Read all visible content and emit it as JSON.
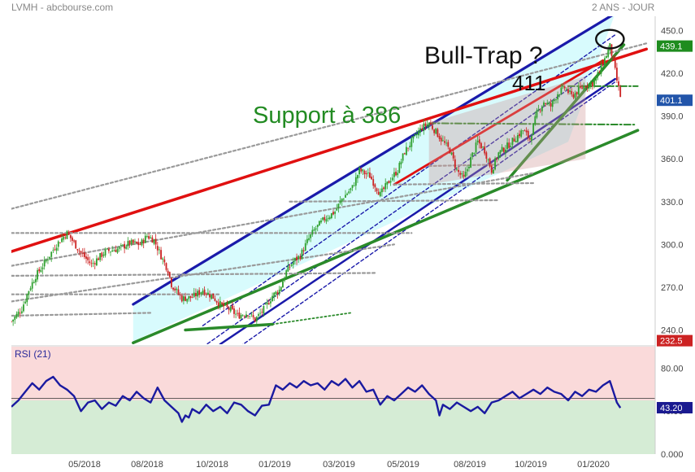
{
  "header": {
    "source": "LVMH - abcbourse.com",
    "period": "2 ANS - JOUR"
  },
  "colors": {
    "up": "#2ea02e",
    "down": "#cc2222",
    "blue": "#1a1aaa",
    "red": "#e01010",
    "green": "#2a8a2a",
    "dotted": "#9a9a9a",
    "channel_fill": "#d8fbfd",
    "rsi_line": "#1a1aa0",
    "rsi_high": "#fadada",
    "rsi_low": "#d5ecd5"
  },
  "chart_data": [
    {
      "type": "candlestick",
      "ylim": [
        230,
        460
      ],
      "y_ticks": [
        "450.0",
        "420.0",
        "390.0",
        "360.0",
        "330.0",
        "300.0",
        "270.0",
        "240.0"
      ],
      "y_tick_values": [
        450,
        420,
        390,
        360,
        330,
        300,
        270,
        240
      ],
      "x_ticks": [
        "05/2018",
        "08/2018",
        "10/2018",
        "01/2019",
        "03/2019",
        "05/2019",
        "08/2019",
        "10/2019",
        "01/2020"
      ],
      "price_labels": [
        {
          "text": "439.1",
          "value": 439.1,
          "color": "#1e8c1e"
        },
        {
          "text": "401.1",
          "value": 401.1,
          "color": "#2255aa"
        },
        {
          "text": "232.5",
          "value": 232.5,
          "color": "#cc2222"
        }
      ],
      "annotations": {
        "bull_trap": "Bull-Trap ?",
        "level_411": "411",
        "support": "Support à 386"
      },
      "close_path": [
        [
          0,
          246
        ],
        [
          6,
          255
        ],
        [
          10,
          268
        ],
        [
          14,
          278
        ],
        [
          18,
          285
        ],
        [
          26,
          300
        ],
        [
          32,
          308
        ],
        [
          40,
          294
        ],
        [
          46,
          286
        ],
        [
          54,
          295
        ],
        [
          62,
          297
        ],
        [
          68,
          301
        ],
        [
          74,
          300
        ],
        [
          78,
          306
        ],
        [
          82,
          303
        ],
        [
          86,
          292
        ],
        [
          90,
          282
        ],
        [
          92,
          272
        ],
        [
          98,
          262
        ],
        [
          104,
          263
        ],
        [
          110,
          268
        ],
        [
          116,
          263
        ],
        [
          120,
          258
        ],
        [
          126,
          254
        ],
        [
          130,
          250
        ],
        [
          136,
          252
        ],
        [
          140,
          247
        ],
        [
          146,
          256
        ],
        [
          150,
          264
        ],
        [
          154,
          268
        ],
        [
          158,
          281
        ],
        [
          162,
          288
        ],
        [
          166,
          292
        ],
        [
          170,
          302
        ],
        [
          174,
          310
        ],
        [
          180,
          318
        ],
        [
          186,
          323
        ],
        [
          190,
          332
        ],
        [
          196,
          340
        ],
        [
          200,
          352
        ],
        [
          206,
          348
        ],
        [
          212,
          335
        ],
        [
          218,
          346
        ],
        [
          222,
          352
        ],
        [
          226,
          365
        ],
        [
          230,
          372
        ],
        [
          236,
          382
        ],
        [
          240,
          385
        ],
        [
          244,
          379
        ],
        [
          248,
          372
        ],
        [
          252,
          366
        ],
        [
          256,
          352
        ],
        [
          260,
          346
        ],
        [
          264,
          360
        ],
        [
          268,
          372
        ],
        [
          272,
          366
        ],
        [
          276,
          352
        ],
        [
          280,
          364
        ],
        [
          286,
          370
        ],
        [
          290,
          375
        ],
        [
          294,
          380
        ],
        [
          298,
          374
        ],
        [
          302,
          392
        ],
        [
          306,
          400
        ],
        [
          310,
          397
        ],
        [
          314,
          406
        ],
        [
          318,
          410
        ],
        [
          322,
          404
        ],
        [
          326,
          408
        ],
        [
          330,
          412
        ],
        [
          334,
          413
        ],
        [
          338,
          421
        ],
        [
          342,
          433
        ],
        [
          344,
          439
        ],
        [
          346,
          428
        ],
        [
          348,
          415
        ],
        [
          350,
          404
        ]
      ],
      "trendlines": [
        {
          "kind": "fill",
          "pts": [
            [
              70,
              232
            ],
            [
              320,
              372
            ],
            [
              347,
              462
            ],
            [
              70,
              258
            ]
          ]
        },
        {
          "kind": "blue",
          "pts": [
            [
              70,
              258
            ],
            [
              347,
              462
            ]
          ],
          "width": 3.2
        },
        {
          "kind": "blue",
          "pts": [
            [
              110,
              228
            ],
            [
              347,
              432
            ]
          ],
          "width": 1.4,
          "dash": "4,3"
        },
        {
          "kind": "blue",
          "pts": [
            [
              110,
              228
            ],
            [
              347,
              432
            ]
          ],
          "width": 1.4,
          "dash": "4,3",
          "off": -18
        },
        {
          "kind": "blue",
          "pts": [
            [
              110,
              228
            ],
            [
              347,
              432
            ]
          ],
          "width": 1.4,
          "dash": "4,3",
          "off": 15
        },
        {
          "kind": "blue",
          "pts": [
            [
              120,
              230
            ],
            [
              347,
              416
            ]
          ],
          "width": 2.5
        },
        {
          "kind": "red",
          "pts": [
            [
              0,
              295
            ],
            [
              365,
              437
            ]
          ],
          "width": 3.5
        },
        {
          "kind": "red",
          "pts": [
            [
              220,
              342
            ],
            [
              340,
              429
            ]
          ],
          "width": 2.8
        },
        {
          "kind": "green",
          "pts": [
            [
              70,
              231
            ],
            [
              360,
              380
            ]
          ],
          "width": 3.5
        },
        {
          "kind": "green",
          "pts": [
            [
              100,
              240
            ],
            [
              150,
              244
            ]
          ],
          "width": 3.5
        },
        {
          "kind": "green",
          "pts": [
            [
              285,
              345
            ],
            [
              352,
              440
            ]
          ],
          "width": 3.5
        },
        {
          "kind": "greendot",
          "pts": [
            [
              150,
              244
            ],
            [
              195,
              252
            ]
          ],
          "width": 1.8,
          "dash": "2,3"
        },
        {
          "kind": "greendot",
          "pts": [
            [
              240,
              385
            ],
            [
              358,
              384
            ]
          ],
          "width": 2,
          "dash": "8,3,2,3"
        },
        {
          "kind": "greendot",
          "pts": [
            [
              320,
              411
            ],
            [
              360,
              411
            ]
          ],
          "width": 2,
          "dash": "8,3,2,3"
        },
        {
          "kind": "dotted",
          "pts": [
            [
              0,
              325
            ],
            [
              365,
              441
            ]
          ],
          "width": 2.2,
          "dash": "3,3"
        },
        {
          "kind": "dotted",
          "pts": [
            [
              0,
              285
            ],
            [
              300,
              350
            ]
          ],
          "width": 2.2,
          "dash": "3,3"
        },
        {
          "kind": "dotted",
          "pts": [
            [
              0,
              260
            ],
            [
              220,
              300
            ]
          ],
          "width": 2.2,
          "dash": "3,3"
        },
        {
          "kind": "dotted",
          "pts": [
            [
              0,
              308
            ],
            [
              230,
              308
            ]
          ],
          "width": 2.2,
          "dash": "3,3"
        },
        {
          "kind": "dotted",
          "pts": [
            [
              0,
              278
            ],
            [
              210,
              280
            ]
          ],
          "width": 2.2,
          "dash": "3,3"
        },
        {
          "kind": "dotted",
          "pts": [
            [
              0,
              265
            ],
            [
              120,
              265
            ]
          ],
          "width": 2.2,
          "dash": "3,3"
        },
        {
          "kind": "dotted",
          "pts": [
            [
              0,
              250
            ],
            [
              80,
              252
            ]
          ],
          "width": 2.2,
          "dash": "3,3"
        },
        {
          "kind": "dotted",
          "pts": [
            [
              160,
              330
            ],
            [
              280,
              331
            ]
          ],
          "width": 2.2,
          "dash": "3,3"
        },
        {
          "kind": "dotted",
          "pts": [
            [
              220,
              342
            ],
            [
              300,
              343
            ]
          ],
          "width": 2.2,
          "dash": "3,3"
        },
        {
          "kind": "dotted",
          "pts": [
            [
              240,
              355
            ],
            [
              280,
              356
            ]
          ],
          "width": 2.2,
          "dash": "3,3"
        }
      ],
      "zone": {
        "pts": [
          [
            240,
            385
          ],
          [
            330,
            418
          ],
          [
            330,
            360
          ],
          [
            240,
            342
          ]
        ]
      },
      "bulltrap_circle": {
        "cx": 344,
        "cy": 444,
        "rx": 8,
        "ry": 6.5
      }
    },
    {
      "type": "line",
      "title": "RSI (21)",
      "ylim": [
        0,
        100
      ],
      "y_ticks": [
        "80.00",
        "40.00",
        "0.000"
      ],
      "y_tick_values": [
        80,
        40,
        0
      ],
      "current": {
        "text": "43.20",
        "value": 43.2
      },
      "high_band": 52,
      "values": [
        [
          0,
          44
        ],
        [
          4,
          50
        ],
        [
          8,
          58
        ],
        [
          12,
          66
        ],
        [
          16,
          60
        ],
        [
          20,
          68
        ],
        [
          24,
          72
        ],
        [
          28,
          64
        ],
        [
          32,
          60
        ],
        [
          36,
          54
        ],
        [
          40,
          40
        ],
        [
          44,
          48
        ],
        [
          48,
          50
        ],
        [
          52,
          42
        ],
        [
          56,
          48
        ],
        [
          60,
          45
        ],
        [
          64,
          54
        ],
        [
          68,
          50
        ],
        [
          72,
          58
        ],
        [
          76,
          52
        ],
        [
          80,
          48
        ],
        [
          84,
          62
        ],
        [
          88,
          50
        ],
        [
          92,
          44
        ],
        [
          96,
          38
        ],
        [
          98,
          30
        ],
        [
          100,
          36
        ],
        [
          102,
          34
        ],
        [
          104,
          42
        ],
        [
          108,
          38
        ],
        [
          112,
          46
        ],
        [
          116,
          40
        ],
        [
          120,
          44
        ],
        [
          124,
          38
        ],
        [
          128,
          48
        ],
        [
          132,
          46
        ],
        [
          136,
          40
        ],
        [
          140,
          36
        ],
        [
          144,
          45
        ],
        [
          148,
          46
        ],
        [
          152,
          64
        ],
        [
          156,
          60
        ],
        [
          160,
          66
        ],
        [
          164,
          62
        ],
        [
          168,
          68
        ],
        [
          172,
          64
        ],
        [
          176,
          66
        ],
        [
          180,
          60
        ],
        [
          184,
          68
        ],
        [
          188,
          64
        ],
        [
          192,
          70
        ],
        [
          196,
          62
        ],
        [
          200,
          68
        ],
        [
          204,
          58
        ],
        [
          208,
          60
        ],
        [
          212,
          46
        ],
        [
          216,
          54
        ],
        [
          220,
          50
        ],
        [
          224,
          56
        ],
        [
          228,
          62
        ],
        [
          232,
          58
        ],
        [
          236,
          64
        ],
        [
          240,
          56
        ],
        [
          244,
          50
        ],
        [
          246,
          36
        ],
        [
          248,
          46
        ],
        [
          252,
          42
        ],
        [
          256,
          48
        ],
        [
          260,
          44
        ],
        [
          264,
          40
        ],
        [
          268,
          44
        ],
        [
          272,
          38
        ],
        [
          276,
          48
        ],
        [
          280,
          50
        ],
        [
          284,
          54
        ],
        [
          288,
          58
        ],
        [
          292,
          52
        ],
        [
          296,
          56
        ],
        [
          300,
          60
        ],
        [
          304,
          56
        ],
        [
          308,
          62
        ],
        [
          312,
          58
        ],
        [
          316,
          56
        ],
        [
          320,
          50
        ],
        [
          324,
          58
        ],
        [
          328,
          54
        ],
        [
          332,
          60
        ],
        [
          336,
          58
        ],
        [
          340,
          64
        ],
        [
          344,
          68
        ],
        [
          346,
          58
        ],
        [
          348,
          48
        ],
        [
          350,
          43
        ]
      ]
    }
  ]
}
